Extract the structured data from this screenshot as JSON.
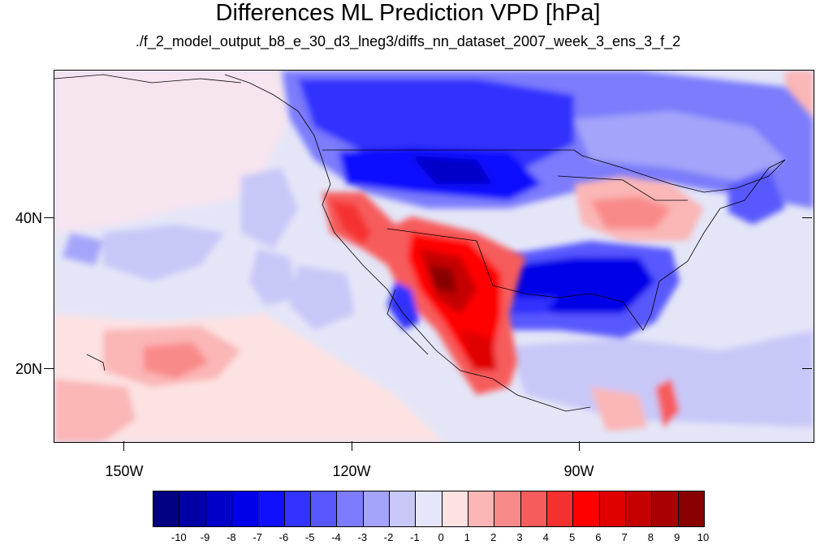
{
  "title": "Differences ML Prediction VPD [hPa]",
  "subtitle": "./f_2_model_output_b8_e_30_d3_lneg3/diffs_nn_dataset_2007_week_3_ens_3_f_2",
  "map": {
    "lon_labels": [
      "150W",
      "120W",
      "90W"
    ],
    "lat_labels": [
      "40N",
      "20N"
    ],
    "projection": "cylindrical-equidistant",
    "region": "North America / NE Pacific",
    "colors": {
      "neutral": "#e4e6f8",
      "coast": "#000000"
    }
  },
  "colorbar": {
    "labels": [
      "-10",
      "-9",
      "-8",
      "-7",
      "-6",
      "-5",
      "-4",
      "-3",
      "-2",
      "-1",
      "0",
      "1",
      "2",
      "3",
      "4",
      "5",
      "6",
      "7",
      "8",
      "9",
      "10"
    ],
    "colors": [
      "#000080",
      "#0000a4",
      "#0000c8",
      "#0000e8",
      "#1010ff",
      "#3333ff",
      "#5858ff",
      "#7c7cfc",
      "#a4a4fa",
      "#c8c8f8",
      "#e6e6fa",
      "#fde2e2",
      "#fbb6b6",
      "#f98a8a",
      "#f75c5c",
      "#f53030",
      "#ff0000",
      "#e00000",
      "#c40000",
      "#a80000",
      "#880000"
    ]
  }
}
